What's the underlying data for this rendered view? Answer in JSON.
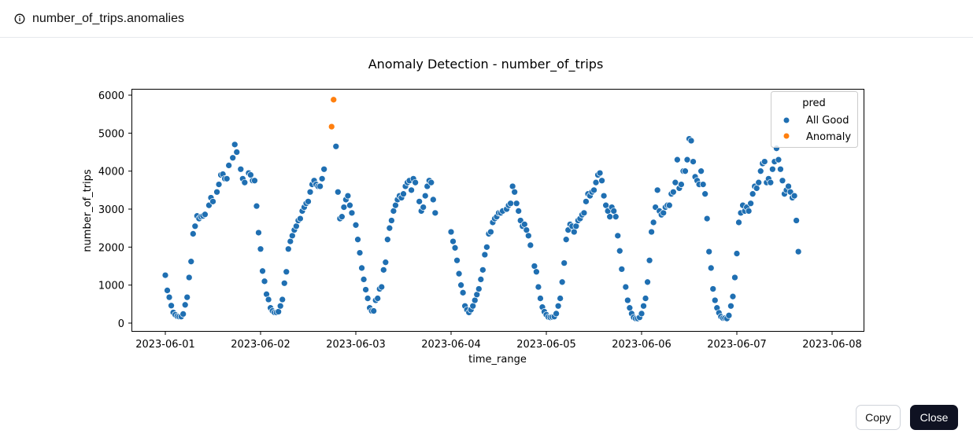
{
  "header": {
    "title": "number_of_trips.anomalies",
    "icon": "info-icon"
  },
  "buttons": {
    "copy": "Copy",
    "close": "Close"
  },
  "chart_data": {
    "type": "scatter",
    "title": "Anomaly Detection - number_of_trips",
    "xlabel": "time_range",
    "ylabel": "number_of_trips",
    "x_unit": "hours since 2023-06-01 00:00",
    "xlim_hours": [
      -8.5,
      176
    ],
    "ylim": [
      -200,
      6150
    ],
    "yticks": [
      0,
      1000,
      2000,
      3000,
      4000,
      5000,
      6000
    ],
    "xticks": [
      {
        "hours": 0,
        "label": "2023-06-01"
      },
      {
        "hours": 24,
        "label": "2023-06-02"
      },
      {
        "hours": 48,
        "label": "2023-06-03"
      },
      {
        "hours": 72,
        "label": "2023-06-04"
      },
      {
        "hours": 96,
        "label": "2023-06-05"
      },
      {
        "hours": 120,
        "label": "2023-06-06"
      },
      {
        "hours": 144,
        "label": "2023-06-07"
      },
      {
        "hours": 168,
        "label": "2023-06-08"
      }
    ],
    "legend": {
      "title": "pred",
      "placement": "top-right",
      "entries": [
        {
          "label": "All Good",
          "color": "#1f6fb2"
        },
        {
          "label": "Anomaly",
          "color": "#ff7f0e"
        }
      ]
    },
    "series": [
      {
        "name": "All Good",
        "color": "#1f6fb2",
        "points": [
          [
            0,
            1260
          ],
          [
            0.5,
            860
          ],
          [
            1,
            680
          ],
          [
            1.5,
            460
          ],
          [
            2,
            280
          ],
          [
            2.5,
            220
          ],
          [
            3,
            180
          ],
          [
            3.5,
            170
          ],
          [
            4,
            170
          ],
          [
            4.5,
            240
          ],
          [
            5,
            480
          ],
          [
            5.5,
            680
          ],
          [
            6,
            1200
          ],
          [
            6.5,
            1620
          ],
          [
            7,
            2350
          ],
          [
            7.5,
            2550
          ],
          [
            8,
            2820
          ],
          [
            8.5,
            2750
          ],
          [
            9,
            2800
          ],
          [
            9.5,
            2820
          ],
          [
            10,
            2860
          ],
          [
            11,
            3100
          ],
          [
            11.5,
            3300
          ],
          [
            12,
            3200
          ],
          [
            13,
            3450
          ],
          [
            13.5,
            3650
          ],
          [
            14,
            3900
          ],
          [
            14.5,
            3920
          ],
          [
            15,
            3800
          ],
          [
            15.5,
            3800
          ],
          [
            16,
            4150
          ],
          [
            17,
            4350
          ],
          [
            17.5,
            4700
          ],
          [
            18,
            4500
          ],
          [
            19,
            4050
          ],
          [
            19.5,
            3800
          ],
          [
            20,
            3700
          ],
          [
            21,
            3950
          ],
          [
            21.5,
            3900
          ],
          [
            22,
            3750
          ],
          [
            22.5,
            3750
          ],
          [
            23,
            3080
          ],
          [
            23.5,
            2380
          ],
          [
            24,
            1950
          ],
          [
            24.5,
            1370
          ],
          [
            25,
            1100
          ],
          [
            25.5,
            760
          ],
          [
            26,
            620
          ],
          [
            26.5,
            400
          ],
          [
            27,
            320
          ],
          [
            27.5,
            280
          ],
          [
            28,
            280
          ],
          [
            28.5,
            300
          ],
          [
            29,
            450
          ],
          [
            29.5,
            620
          ],
          [
            30,
            1050
          ],
          [
            30.5,
            1350
          ],
          [
            31,
            1950
          ],
          [
            31.5,
            2150
          ],
          [
            32,
            2300
          ],
          [
            32.5,
            2450
          ],
          [
            33,
            2550
          ],
          [
            33.5,
            2700
          ],
          [
            34,
            2750
          ],
          [
            34.5,
            2950
          ],
          [
            35,
            3050
          ],
          [
            35.5,
            3150
          ],
          [
            36,
            3200
          ],
          [
            36.5,
            3450
          ],
          [
            37,
            3650
          ],
          [
            37.5,
            3750
          ],
          [
            38,
            3650
          ],
          [
            38.5,
            3600
          ],
          [
            39,
            3600
          ],
          [
            39.5,
            3800
          ],
          [
            40,
            4050
          ],
          [
            43,
            4650
          ],
          [
            43.5,
            3450
          ],
          [
            44,
            2750
          ],
          [
            44.5,
            2800
          ],
          [
            45,
            3050
          ],
          [
            45.5,
            3250
          ],
          [
            46,
            3350
          ],
          [
            46.5,
            3100
          ],
          [
            47,
            2900
          ],
          [
            48,
            2580
          ],
          [
            48.5,
            2200
          ],
          [
            49,
            1850
          ],
          [
            49.5,
            1450
          ],
          [
            50,
            1150
          ],
          [
            50.5,
            880
          ],
          [
            51,
            650
          ],
          [
            51.5,
            400
          ],
          [
            52,
            320
          ],
          [
            52.5,
            320
          ],
          [
            53,
            600
          ],
          [
            53.5,
            650
          ],
          [
            54,
            900
          ],
          [
            54.5,
            950
          ],
          [
            55,
            1400
          ],
          [
            55.5,
            1600
          ],
          [
            56,
            2200
          ],
          [
            56.5,
            2500
          ],
          [
            57,
            2700
          ],
          [
            57.5,
            2950
          ],
          [
            58,
            3100
          ],
          [
            58.5,
            3250
          ],
          [
            59,
            3350
          ],
          [
            59.5,
            3300
          ],
          [
            60,
            3400
          ],
          [
            60.5,
            3600
          ],
          [
            61,
            3700
          ],
          [
            61.5,
            3750
          ],
          [
            62,
            3500
          ],
          [
            62.5,
            3800
          ],
          [
            63,
            3700
          ],
          [
            64,
            3200
          ],
          [
            64.5,
            2950
          ],
          [
            65,
            3050
          ],
          [
            65.5,
            3350
          ],
          [
            66,
            3600
          ],
          [
            66.5,
            3750
          ],
          [
            67,
            3700
          ],
          [
            67.5,
            3250
          ],
          [
            68,
            2900
          ],
          [
            72,
            2400
          ],
          [
            72.5,
            2150
          ],
          [
            73,
            1980
          ],
          [
            73.5,
            1650
          ],
          [
            74,
            1300
          ],
          [
            74.5,
            1000
          ],
          [
            75,
            800
          ],
          [
            75.5,
            450
          ],
          [
            76,
            350
          ],
          [
            76.5,
            280
          ],
          [
            77,
            350
          ],
          [
            77.5,
            450
          ],
          [
            78,
            600
          ],
          [
            78.5,
            750
          ],
          [
            79,
            900
          ],
          [
            79.5,
            1150
          ],
          [
            80,
            1400
          ],
          [
            80.5,
            1800
          ],
          [
            81,
            2000
          ],
          [
            81.5,
            2350
          ],
          [
            82,
            2400
          ],
          [
            82.5,
            2650
          ],
          [
            83,
            2750
          ],
          [
            83.5,
            2800
          ],
          [
            84,
            2900
          ],
          [
            84.5,
            2900
          ],
          [
            85,
            2950
          ],
          [
            86,
            3000
          ],
          [
            86.5,
            3100
          ],
          [
            87,
            3150
          ],
          [
            87.5,
            3600
          ],
          [
            88,
            3450
          ],
          [
            88.5,
            3150
          ],
          [
            89,
            2950
          ],
          [
            89.5,
            2700
          ],
          [
            90,
            2550
          ],
          [
            90.5,
            2600
          ],
          [
            91,
            2450
          ],
          [
            91.5,
            2300
          ],
          [
            92,
            2050
          ],
          [
            93,
            1500
          ],
          [
            93.5,
            1350
          ],
          [
            94,
            950
          ],
          [
            94.5,
            650
          ],
          [
            95,
            420
          ],
          [
            95.5,
            300
          ],
          [
            96,
            220
          ],
          [
            96.5,
            160
          ],
          [
            97,
            150
          ],
          [
            97.5,
            160
          ],
          [
            98,
            170
          ],
          [
            98.5,
            250
          ],
          [
            99,
            450
          ],
          [
            99.5,
            650
          ],
          [
            100,
            1080
          ],
          [
            100.5,
            1580
          ],
          [
            101,
            2200
          ],
          [
            101.5,
            2450
          ],
          [
            102,
            2600
          ],
          [
            102.5,
            2550
          ],
          [
            103,
            2400
          ],
          [
            103.5,
            2550
          ],
          [
            104,
            2700
          ],
          [
            104.5,
            2750
          ],
          [
            105,
            2850
          ],
          [
            105.5,
            2900
          ],
          [
            106,
            3200
          ],
          [
            106.5,
            3400
          ],
          [
            107,
            3350
          ],
          [
            107.5,
            3450
          ],
          [
            108,
            3500
          ],
          [
            108.5,
            3700
          ],
          [
            109,
            3900
          ],
          [
            109.5,
            3950
          ],
          [
            110,
            3750
          ],
          [
            110.5,
            3350
          ],
          [
            111,
            3100
          ],
          [
            111.5,
            2950
          ],
          [
            112,
            2800
          ],
          [
            112.5,
            3050
          ],
          [
            113,
            2950
          ],
          [
            113.5,
            2800
          ],
          [
            114,
            2300
          ],
          [
            114.5,
            1900
          ],
          [
            115,
            1420
          ],
          [
            116,
            950
          ],
          [
            116.5,
            600
          ],
          [
            117,
            400
          ],
          [
            117.5,
            250
          ],
          [
            118,
            150
          ],
          [
            118.5,
            120
          ],
          [
            119,
            120
          ],
          [
            119.5,
            150
          ],
          [
            120,
            250
          ],
          [
            120.5,
            450
          ],
          [
            121,
            650
          ],
          [
            121.5,
            1080
          ],
          [
            122,
            1650
          ],
          [
            122.5,
            2400
          ],
          [
            123,
            2650
          ],
          [
            123.5,
            3050
          ],
          [
            124,
            3500
          ],
          [
            124.5,
            2950
          ],
          [
            125,
            2850
          ],
          [
            125.5,
            2900
          ],
          [
            126,
            3050
          ],
          [
            126.5,
            3100
          ],
          [
            127,
            3100
          ],
          [
            127.5,
            3400
          ],
          [
            128,
            3450
          ],
          [
            128.5,
            3700
          ],
          [
            129,
            4300
          ],
          [
            129.5,
            3550
          ],
          [
            130,
            3650
          ],
          [
            130.5,
            4000
          ],
          [
            131,
            4000
          ],
          [
            131.5,
            4300
          ],
          [
            132,
            4850
          ],
          [
            132.5,
            4800
          ],
          [
            133,
            4250
          ],
          [
            133.5,
            3850
          ],
          [
            134,
            3750
          ],
          [
            134.5,
            3650
          ],
          [
            135,
            4000
          ],
          [
            135.5,
            3650
          ],
          [
            136,
            3400
          ],
          [
            136.5,
            2750
          ],
          [
            137,
            1880
          ],
          [
            137.5,
            1450
          ],
          [
            138,
            900
          ],
          [
            138.5,
            600
          ],
          [
            139,
            400
          ],
          [
            139.5,
            270
          ],
          [
            140,
            170
          ],
          [
            140.5,
            130
          ],
          [
            141,
            130
          ],
          [
            141.5,
            120
          ],
          [
            142,
            200
          ],
          [
            142.5,
            450
          ],
          [
            143,
            700
          ],
          [
            143.5,
            1200
          ],
          [
            144,
            1830
          ],
          [
            144.5,
            2650
          ],
          [
            145,
            2900
          ],
          [
            145.5,
            3100
          ],
          [
            146,
            2950
          ],
          [
            146.5,
            3050
          ],
          [
            147,
            2950
          ],
          [
            147.5,
            3150
          ],
          [
            148,
            3400
          ],
          [
            148.5,
            3600
          ],
          [
            149,
            3550
          ],
          [
            149.5,
            3700
          ],
          [
            150,
            4000
          ],
          [
            150.5,
            4200
          ],
          [
            151,
            4250
          ],
          [
            151.5,
            3700
          ],
          [
            152,
            3800
          ],
          [
            152.5,
            3700
          ],
          [
            153,
            4050
          ],
          [
            153.5,
            4250
          ],
          [
            154,
            4600
          ],
          [
            154.5,
            4300
          ],
          [
            155,
            4050
          ],
          [
            155.5,
            3750
          ],
          [
            156,
            3400
          ],
          [
            156.5,
            3500
          ],
          [
            157,
            3600
          ],
          [
            157.5,
            3450
          ],
          [
            158,
            3300
          ],
          [
            158.5,
            3350
          ],
          [
            159,
            2700
          ],
          [
            159.5,
            1880
          ]
        ]
      },
      {
        "name": "Anomaly",
        "color": "#ff7f0e",
        "points": [
          [
            41.9,
            5170
          ],
          [
            42.4,
            5880
          ]
        ]
      }
    ]
  }
}
